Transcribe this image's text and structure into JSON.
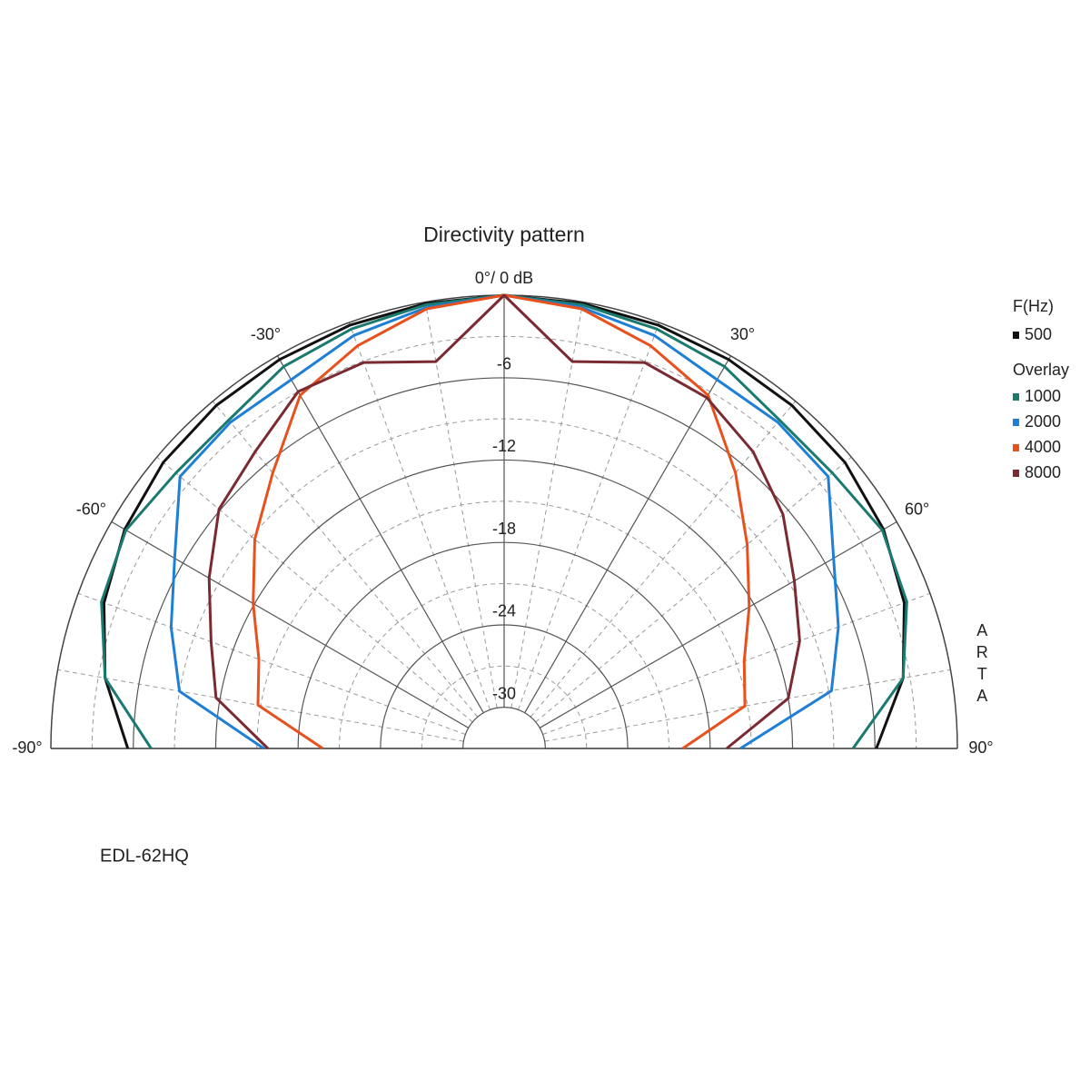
{
  "chart_data": {
    "type": "polar",
    "title": "Directivity pattern",
    "theta": [
      -90,
      -80,
      -70,
      -60,
      -50,
      -40,
      -30,
      -20,
      -10,
      0,
      10,
      20,
      30,
      40,
      50,
      60,
      70,
      80,
      90
    ],
    "thetalim": [
      -90,
      90
    ],
    "thetaticks": [
      {
        "value": -90,
        "label": "-90°"
      },
      {
        "value": -60,
        "label": "-60°"
      },
      {
        "value": -30,
        "label": "-30°"
      },
      {
        "value": 0,
        "label": "0°/ 0 dB"
      },
      {
        "value": 30,
        "label": "30°"
      },
      {
        "value": 60,
        "label": "60°"
      },
      {
        "value": 90,
        "label": "90°"
      }
    ],
    "theta_minor_ticks": [
      -80,
      -70,
      -50,
      -40,
      -20,
      -10,
      10,
      20,
      40,
      50,
      70,
      80
    ],
    "rlim": [
      -33,
      0
    ],
    "rticks": [
      -6,
      -12,
      -18,
      -24,
      -30
    ],
    "r_minor_ticks": [
      -3,
      -9,
      -15,
      -21,
      -27
    ],
    "grid": true,
    "legend_title": "F(Hz)",
    "overlay_label": "Overlay",
    "series": [
      {
        "name": "500",
        "color": "#111111",
        "values": [
          -5.6,
          -3.5,
          -2,
          -1.1,
          -0.6,
          -0.4,
          -0.3,
          -0.2,
          -0.1,
          0,
          -0.1,
          -0.2,
          -0.3,
          -0.4,
          -0.6,
          -1.1,
          -2,
          -3.5,
          -5.9
        ]
      },
      {
        "name": "1000",
        "color": "#1b7a70",
        "values": [
          -7.3,
          -3.5,
          -1.8,
          -1.2,
          -1.8,
          -1.8,
          -0.9,
          -0.5,
          -0.2,
          0,
          -0.2,
          -0.5,
          -0.9,
          -1.8,
          -1.8,
          -1.2,
          -1.8,
          -3.5,
          -7.6
        ]
      },
      {
        "name": "2000",
        "color": "#1e7fd6",
        "values": [
          -15.5,
          -9,
          -7.2,
          -5.3,
          -2.2,
          -2,
          -2,
          -1,
          -0.4,
          0,
          -0.4,
          -1,
          -2,
          -2,
          -2.2,
          -5.3,
          -7.1,
          -8.8,
          -15.8
        ]
      },
      {
        "name": "4000",
        "color": "#e8501c",
        "values": [
          -19.8,
          -14.8,
          -14,
          -11.9,
          -9.3,
          -6.8,
          -3.3,
          -1.8,
          -0.5,
          0,
          -0.5,
          -1.8,
          -3.3,
          -6.8,
          -9.9,
          -12.4,
          -14.4,
          -15.2,
          -20
        ]
      },
      {
        "name": "8000",
        "color": "#7a2a30",
        "values": [
          -15.8,
          -11.7,
          -10.3,
          -8.2,
          -5.9,
          -4.8,
          -3,
          -3.1,
          -4.4,
          0,
          -4.4,
          -3.1,
          -3.5,
          -4.8,
          -6.5,
          -8.6,
          -10.1,
          -12,
          -16.8
        ]
      }
    ],
    "annotations": [
      "ARTA",
      "EDL-62HQ"
    ]
  }
}
